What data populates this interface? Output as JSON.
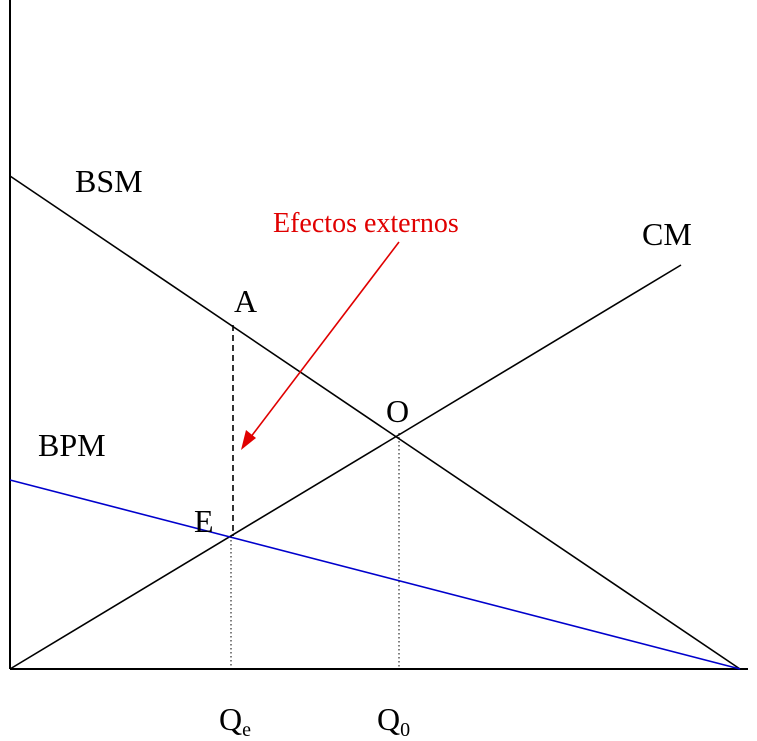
{
  "labels": {
    "bsm": "BSM",
    "bpm": "BPM",
    "cm": "CM",
    "point_a": "A",
    "point_o": "O",
    "point_e": "E",
    "externalities": "Efectos externos",
    "qe_main": "Q",
    "qe_sub": "e",
    "q0_main": "Q",
    "q0_sub": "0"
  },
  "colors": {
    "axis": "#000000",
    "bsm_line": "#000000",
    "cm_line": "#000000",
    "bpm_line": "#0000cc",
    "annotation": "#e00000"
  }
}
